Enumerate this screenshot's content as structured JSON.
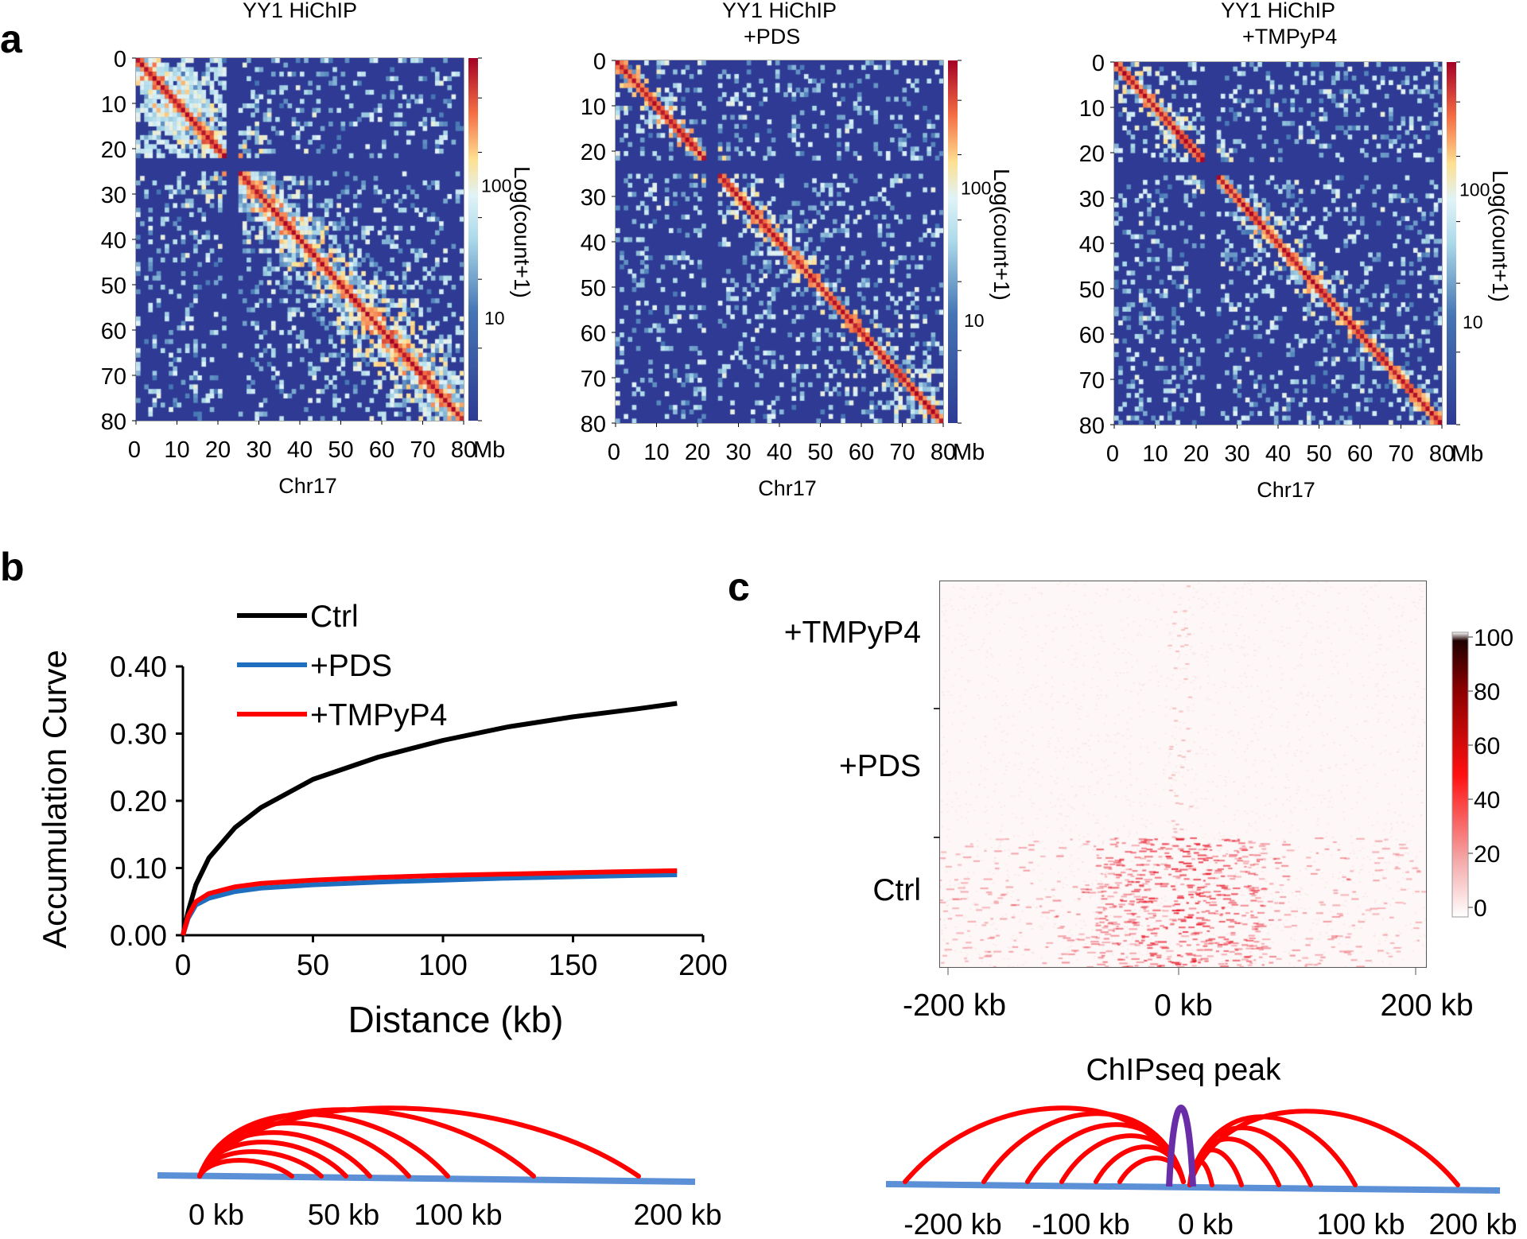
{
  "panel_labels": {
    "a": "a",
    "b": "b",
    "c": "c"
  },
  "heatmaps": [
    {
      "title1": "YY1 HiChIP",
      "title2": "",
      "density": 1.0
    },
    {
      "title1": "YY1 HiChIP",
      "title2": "+PDS",
      "density": 0.55
    },
    {
      "title1": "YY1 HiChIP",
      "title2": "+TMPyP4",
      "density": 0.5
    }
  ],
  "heatmap_axis": {
    "ticks": [
      "0",
      "10",
      "20",
      "30",
      "40",
      "50",
      "60",
      "70",
      "80"
    ],
    "unit": "Mb",
    "xlabel": "Chr17",
    "colorbar_label": "Log(count+1)",
    "colorbar_ticks": [
      "100",
      "10"
    ]
  },
  "chart_data": [
    {
      "type": "line",
      "title": "",
      "xlabel": "Distance (kb)",
      "ylabel": "Accumulation Curve",
      "xlim": [
        0,
        200
      ],
      "ylim": [
        0,
        0.4
      ],
      "xticks": [
        "0",
        "50",
        "100",
        "150",
        "200"
      ],
      "yticks": [
        "0.00",
        "0.10",
        "0.20",
        "0.30",
        "0.40"
      ],
      "legend_position": "top-left",
      "x": [
        0,
        2,
        5,
        10,
        20,
        30,
        50,
        75,
        100,
        125,
        150,
        175,
        190
      ],
      "series": [
        {
          "name": "Ctrl",
          "color": "#000000",
          "values": [
            0,
            0.035,
            0.075,
            0.115,
            0.16,
            0.19,
            0.232,
            0.265,
            0.29,
            0.31,
            0.325,
            0.337,
            0.345
          ]
        },
        {
          "name": "+PDS",
          "color": "#1f6fc1",
          "values": [
            0,
            0.025,
            0.045,
            0.055,
            0.065,
            0.07,
            0.075,
            0.079,
            0.082,
            0.085,
            0.087,
            0.089,
            0.09
          ]
        },
        {
          "name": "+TMPyP4",
          "color": "#ff0000",
          "values": [
            0,
            0.028,
            0.05,
            0.062,
            0.072,
            0.077,
            0.082,
            0.086,
            0.089,
            0.091,
            0.093,
            0.095,
            0.096
          ]
        }
      ]
    },
    {
      "type": "heatmap",
      "rows": [
        "+TMPyP4",
        "+PDS",
        "Ctrl"
      ],
      "xticks": [
        "-200 kb",
        "0 kb",
        "200 kb"
      ],
      "colorbar_ticks": [
        "100",
        "80",
        "60",
        "40",
        "20",
        "0"
      ],
      "center_line_color": "#6a2da8"
    }
  ],
  "diagram_b": {
    "labels": [
      "0 kb",
      "50 kb",
      "100 kb",
      "200 kb"
    ]
  },
  "diagram_c": {
    "title": "ChIPseq peak",
    "labels": [
      "-200 kb",
      "-100 kb",
      "0 kb",
      "100 kb",
      "200 kb"
    ]
  },
  "colors": {
    "arc": "#ff0000",
    "baseline": "#5b8fd6",
    "peak": "#6a2da8"
  }
}
